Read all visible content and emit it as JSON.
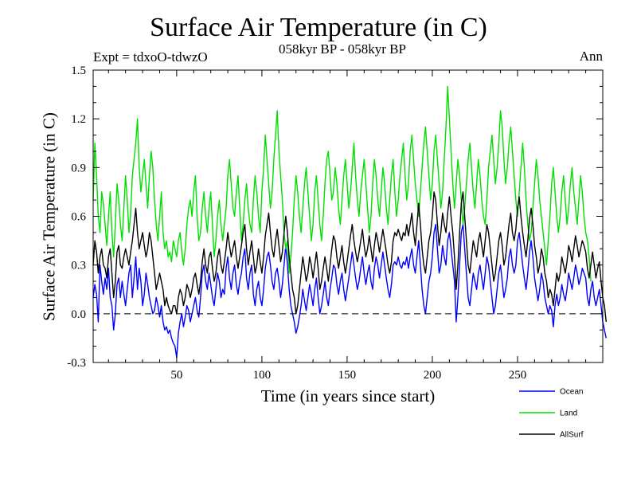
{
  "chart_data": {
    "type": "line",
    "title": "Surface Air Temperature (in C)",
    "subtitle": "058kyr BP - 058kyr BP",
    "experiment": "Expt = tdxoO-tdwzO",
    "season": "Ann",
    "xlabel": "Time (in years since start)",
    "ylabel": "Surface Air Temperature (in C)",
    "xlim": [
      1,
      300
    ],
    "ylim": [
      -0.3,
      1.5
    ],
    "xticks": [
      50,
      100,
      150,
      200,
      250
    ],
    "yticks": [
      "-0.3",
      "0.0",
      "0.3",
      "0.6",
      "0.9",
      "1.2",
      "1.5"
    ],
    "reference_line": {
      "y": 0.0,
      "style": "dashed"
    },
    "legend_position": "bottom-right",
    "x_start": 1,
    "series": [
      {
        "name": "Ocean",
        "color": "#0000ff",
        "values": [
          0.1,
          0.18,
          0.12,
          -0.05,
          0.3,
          0.2,
          0.12,
          0.22,
          0.15,
          0.28,
          0.1,
          0.05,
          -0.1,
          0.0,
          0.18,
          0.22,
          0.1,
          0.2,
          0.12,
          0.05,
          0.15,
          0.25,
          0.3,
          0.1,
          0.22,
          0.35,
          0.15,
          0.28,
          0.2,
          0.05,
          0.12,
          0.25,
          0.18,
          0.1,
          0.05,
          0.0,
          0.02,
          0.1,
          0.05,
          -0.02,
          0.05,
          -0.05,
          -0.1,
          -0.08,
          -0.12,
          -0.1,
          -0.15,
          -0.18,
          -0.2,
          -0.27,
          -0.12,
          -0.05,
          0.0,
          -0.08,
          -0.02,
          0.05,
          0.02,
          -0.05,
          0.0,
          0.05,
          0.1,
          0.02,
          -0.02,
          0.1,
          0.25,
          0.3,
          0.2,
          0.15,
          0.25,
          0.18,
          0.1,
          0.05,
          0.15,
          0.25,
          0.2,
          0.1,
          0.15,
          0.12,
          0.28,
          0.35,
          0.22,
          0.15,
          0.25,
          0.3,
          0.18,
          0.12,
          0.2,
          0.25,
          0.35,
          0.4,
          0.22,
          0.15,
          0.25,
          0.3,
          0.12,
          0.05,
          0.15,
          0.2,
          0.1,
          0.05,
          0.15,
          0.28,
          0.35,
          0.38,
          0.3,
          0.2,
          0.15,
          0.25,
          0.28,
          0.2,
          0.1,
          0.18,
          0.3,
          0.42,
          0.3,
          0.15,
          0.05,
          0.0,
          -0.05,
          -0.12,
          -0.08,
          -0.02,
          0.05,
          0.15,
          0.08,
          0.02,
          0.1,
          0.18,
          0.12,
          0.05,
          0.15,
          0.22,
          0.1,
          0.0,
          0.05,
          0.12,
          0.2,
          0.1,
          0.05,
          0.15,
          0.22,
          0.3,
          0.28,
          0.18,
          0.12,
          0.2,
          0.25,
          0.15,
          0.08,
          0.15,
          0.22,
          0.3,
          0.38,
          0.3,
          0.22,
          0.15,
          0.2,
          0.28,
          0.35,
          0.25,
          0.18,
          0.25,
          0.3,
          0.2,
          0.15,
          0.28,
          0.35,
          0.3,
          0.22,
          0.3,
          0.38,
          0.3,
          0.22,
          0.15,
          0.1,
          0.18,
          0.3,
          0.32,
          0.3,
          0.35,
          0.3,
          0.28,
          0.32,
          0.3,
          0.35,
          0.28,
          0.35,
          0.4,
          0.3,
          0.25,
          0.35,
          0.45,
          0.3,
          0.15,
          0.05,
          0.0,
          0.1,
          0.2,
          0.25,
          0.35,
          0.5,
          0.55,
          0.4,
          0.25,
          0.3,
          0.42,
          0.35,
          0.3,
          0.45,
          0.5,
          0.4,
          0.3,
          0.2,
          -0.05,
          0.1,
          0.3,
          0.5,
          0.55,
          0.4,
          0.25,
          0.1,
          0.05,
          0.15,
          0.25,
          0.2,
          0.15,
          0.25,
          0.3,
          0.22,
          0.15,
          0.25,
          0.35,
          0.3,
          0.2,
          0.1,
          0.0,
          0.05,
          0.15,
          0.25,
          0.3,
          0.2,
          0.1,
          0.15,
          0.22,
          0.35,
          0.4,
          0.3,
          0.25,
          0.3,
          0.45,
          0.5,
          0.4,
          0.3,
          0.22,
          0.15,
          0.25,
          0.38,
          0.45,
          0.35,
          0.22,
          0.15,
          0.08,
          0.15,
          0.25,
          0.2,
          0.1,
          0.05,
          0.0,
          0.05,
          0.02,
          -0.08,
          0.05,
          0.12,
          0.05,
          0.1,
          0.18,
          0.12,
          0.08,
          0.15,
          0.25,
          0.2,
          0.15,
          0.22,
          0.3,
          0.25,
          0.18,
          0.22,
          0.28,
          0.25,
          0.22,
          0.1,
          0.05,
          0.15,
          0.2,
          0.1,
          0.05,
          0.1,
          0.15,
          0.05,
          -0.05,
          -0.1,
          -0.15
        ]
      },
      {
        "name": "Land",
        "color": "#00e000",
        "values": [
          0.7,
          1.05,
          0.85,
          0.6,
          0.5,
          0.75,
          0.68,
          0.55,
          0.42,
          0.6,
          0.75,
          0.5,
          0.35,
          0.55,
          0.8,
          0.7,
          0.55,
          0.45,
          0.65,
          0.85,
          0.7,
          0.5,
          0.62,
          0.85,
          0.95,
          1.05,
          1.2,
          0.9,
          0.75,
          0.85,
          0.95,
          0.8,
          0.65,
          0.85,
          1.0,
          0.9,
          0.7,
          0.55,
          0.45,
          0.6,
          0.75,
          0.5,
          0.4,
          0.45,
          0.35,
          0.38,
          0.32,
          0.45,
          0.4,
          0.35,
          0.45,
          0.5,
          0.38,
          0.3,
          0.4,
          0.55,
          0.65,
          0.7,
          0.6,
          0.75,
          0.85,
          0.6,
          0.45,
          0.5,
          0.65,
          0.75,
          0.6,
          0.5,
          0.65,
          0.75,
          0.55,
          0.35,
          0.45,
          0.6,
          0.7,
          0.55,
          0.45,
          0.55,
          0.65,
          0.85,
          0.95,
          0.8,
          0.65,
          0.6,
          0.75,
          0.85,
          0.65,
          0.45,
          0.55,
          0.7,
          0.8,
          0.65,
          0.55,
          0.5,
          0.7,
          0.85,
          0.75,
          0.6,
          0.5,
          0.75,
          0.9,
          1.1,
          0.95,
          0.8,
          0.65,
          0.75,
          0.95,
          1.1,
          1.25,
          1.0,
          0.85,
          0.7,
          0.5,
          0.4,
          0.45,
          0.25,
          0.35,
          0.5,
          0.7,
          0.85,
          0.75,
          0.6,
          0.5,
          0.65,
          0.8,
          0.9,
          0.75,
          0.6,
          0.45,
          0.55,
          0.75,
          0.85,
          0.7,
          0.55,
          0.45,
          0.6,
          0.8,
          0.95,
          1.0,
          0.85,
          0.7,
          0.75,
          0.9,
          0.8,
          0.65,
          0.55,
          0.7,
          0.85,
          0.95,
          0.8,
          0.65,
          0.75,
          0.9,
          1.05,
          0.85,
          0.7,
          0.6,
          0.75,
          0.85,
          0.95,
          0.8,
          0.65,
          0.5,
          0.6,
          0.8,
          0.95,
          0.85,
          0.7,
          0.6,
          0.75,
          0.9,
          0.8,
          0.65,
          0.55,
          0.7,
          0.85,
          0.95,
          0.75,
          0.6,
          0.7,
          0.85,
          0.95,
          1.05,
          0.85,
          0.7,
          0.8,
          1.0,
          1.1,
          0.95,
          0.8,
          0.7,
          0.6,
          0.75,
          0.9,
          1.05,
          1.15,
          1.0,
          0.85,
          0.7,
          0.8,
          1.0,
          1.1,
          0.95,
          0.8,
          0.65,
          0.75,
          0.95,
          1.15,
          1.4,
          1.2,
          1.0,
          0.8,
          0.65,
          0.8,
          0.95,
          0.85,
          0.7,
          0.55,
          0.65,
          0.8,
          0.95,
          1.05,
          0.9,
          0.75,
          0.65,
          0.8,
          0.95,
          0.85,
          0.7,
          0.6,
          0.55,
          0.7,
          0.9,
          1.0,
          1.1,
          0.95,
          0.8,
          0.9,
          1.05,
          1.25,
          1.15,
          0.95,
          0.8,
          0.9,
          1.05,
          1.15,
          1.0,
          0.85,
          0.7,
          0.6,
          0.75,
          0.9,
          1.05,
          0.9,
          0.7,
          0.55,
          0.45,
          0.5,
          0.65,
          0.8,
          0.95,
          0.85,
          0.7,
          0.6,
          0.5,
          0.4,
          0.3,
          0.45,
          0.6,
          0.8,
          0.9,
          0.75,
          0.6,
          0.5,
          0.6,
          0.75,
          0.85,
          0.7,
          0.55,
          0.65,
          0.8,
          0.9,
          0.75,
          0.65,
          0.55,
          0.7,
          0.85,
          0.75,
          0.6,
          0.5,
          0.45,
          0.35,
          0.2
        ]
      },
      {
        "name": "AllSurf",
        "color": "#000000",
        "values": [
          0.3,
          0.45,
          0.38,
          0.25,
          0.35,
          0.4,
          0.3,
          0.28,
          0.22,
          0.35,
          0.4,
          0.25,
          0.1,
          0.2,
          0.38,
          0.42,
          0.3,
          0.28,
          0.35,
          0.4,
          0.35,
          0.3,
          0.38,
          0.45,
          0.55,
          0.65,
          0.5,
          0.4,
          0.45,
          0.5,
          0.42,
          0.35,
          0.4,
          0.5,
          0.45,
          0.35,
          0.25,
          0.15,
          0.2,
          0.25,
          0.2,
          0.15,
          0.05,
          0.1,
          0.05,
          0.02,
          0.0,
          0.05,
          0.05,
          0.0,
          0.1,
          0.15,
          0.12,
          0.05,
          0.1,
          0.18,
          0.15,
          0.1,
          0.15,
          0.22,
          0.25,
          0.18,
          0.12,
          0.2,
          0.32,
          0.4,
          0.3,
          0.25,
          0.35,
          0.38,
          0.28,
          0.2,
          0.25,
          0.35,
          0.4,
          0.3,
          0.25,
          0.32,
          0.4,
          0.5,
          0.42,
          0.35,
          0.4,
          0.45,
          0.35,
          0.28,
          0.35,
          0.42,
          0.5,
          0.55,
          0.4,
          0.3,
          0.38,
          0.45,
          0.35,
          0.25,
          0.3,
          0.4,
          0.32,
          0.25,
          0.35,
          0.48,
          0.55,
          0.62,
          0.5,
          0.4,
          0.35,
          0.45,
          0.52,
          0.42,
          0.32,
          0.38,
          0.5,
          0.6,
          0.5,
          0.35,
          0.25,
          0.15,
          0.1,
          0.0,
          0.05,
          0.15,
          0.25,
          0.35,
          0.28,
          0.2,
          0.25,
          0.35,
          0.3,
          0.22,
          0.3,
          0.38,
          0.28,
          0.15,
          0.2,
          0.28,
          0.35,
          0.28,
          0.2,
          0.3,
          0.4,
          0.48,
          0.45,
          0.35,
          0.28,
          0.35,
          0.42,
          0.32,
          0.25,
          0.32,
          0.4,
          0.48,
          0.55,
          0.45,
          0.38,
          0.32,
          0.38,
          0.45,
          0.52,
          0.42,
          0.35,
          0.4,
          0.48,
          0.4,
          0.32,
          0.42,
          0.5,
          0.45,
          0.38,
          0.45,
          0.52,
          0.45,
          0.38,
          0.3,
          0.25,
          0.32,
          0.45,
          0.5,
          0.48,
          0.52,
          0.48,
          0.45,
          0.5,
          0.48,
          0.55,
          0.48,
          0.55,
          0.62,
          0.5,
          0.42,
          0.55,
          0.68,
          0.55,
          0.4,
          0.3,
          0.25,
          0.35,
          0.45,
          0.5,
          0.6,
          0.75,
          0.7,
          0.55,
          0.42,
          0.5,
          0.62,
          0.55,
          0.5,
          0.62,
          0.72,
          0.6,
          0.5,
          0.35,
          0.15,
          0.3,
          0.5,
          0.68,
          0.75,
          0.6,
          0.45,
          0.3,
          0.25,
          0.35,
          0.45,
          0.4,
          0.35,
          0.45,
          0.5,
          0.42,
          0.35,
          0.45,
          0.55,
          0.5,
          0.4,
          0.3,
          0.2,
          0.25,
          0.35,
          0.45,
          0.5,
          0.42,
          0.3,
          0.35,
          0.45,
          0.55,
          0.62,
          0.5,
          0.45,
          0.52,
          0.65,
          0.72,
          0.6,
          0.5,
          0.42,
          0.35,
          0.45,
          0.58,
          0.65,
          0.55,
          0.42,
          0.35,
          0.25,
          0.3,
          0.4,
          0.35,
          0.25,
          0.2,
          0.1,
          0.15,
          0.12,
          0.05,
          0.15,
          0.25,
          0.2,
          0.25,
          0.35,
          0.3,
          0.25,
          0.32,
          0.42,
          0.38,
          0.32,
          0.4,
          0.48,
          0.42,
          0.35,
          0.4,
          0.45,
          0.42,
          0.38,
          0.28,
          0.22,
          0.3,
          0.38,
          0.3,
          0.22,
          0.28,
          0.32,
          0.2,
          0.1,
          0.05,
          -0.05
        ]
      }
    ]
  }
}
